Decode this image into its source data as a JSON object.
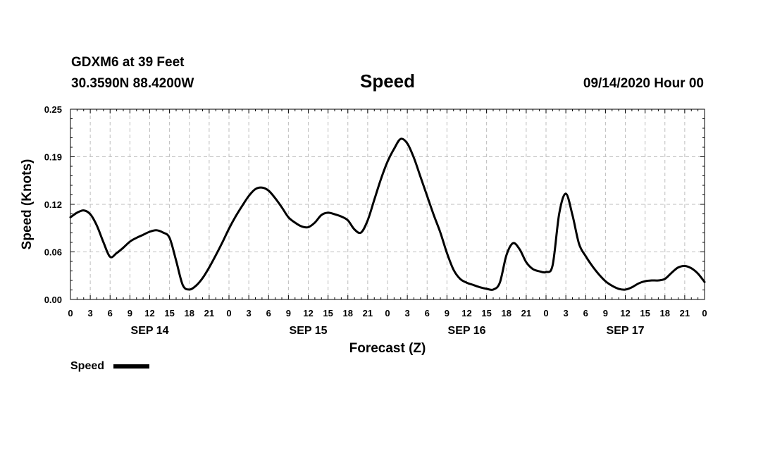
{
  "header": {
    "station": "GDXM6 at 39 Feet",
    "coords": "30.3590N 88.4200W",
    "datetime": "09/14/2020 Hour 00"
  },
  "chart_data": {
    "type": "line",
    "title": "Speed",
    "xlabel": "Forecast (Z)",
    "ylabel": "Speed (Knots)",
    "ylim": [
      0,
      0.25
    ],
    "yticks": [
      "0.00",
      "0.06",
      "0.12",
      "0.19",
      "0.25"
    ],
    "xlim": [
      0,
      96
    ],
    "x_tick_labels": [
      "0",
      "3",
      "6",
      "9",
      "12",
      "15",
      "18",
      "21",
      "0",
      "3",
      "6",
      "9",
      "12",
      "15",
      "18",
      "21",
      "0",
      "3",
      "6",
      "9",
      "12",
      "15",
      "18",
      "21",
      "0",
      "3",
      "6",
      "9",
      "12",
      "15",
      "18",
      "21",
      "0"
    ],
    "day_labels": [
      "SEP 14",
      "SEP 15",
      "SEP 16",
      "SEP 17"
    ],
    "grid": true,
    "legend": "bottom-left",
    "series": [
      {
        "name": "Speed",
        "color": "#000000",
        "x": [
          0,
          1,
          2,
          3,
          4,
          5,
          6,
          7,
          8,
          9,
          10,
          11,
          12,
          13,
          14,
          15,
          16,
          17,
          18,
          19,
          20,
          21,
          22,
          23,
          24,
          25,
          26,
          27,
          28,
          29,
          30,
          31,
          32,
          33,
          34,
          35,
          36,
          37,
          38,
          39,
          40,
          41,
          42,
          43,
          44,
          45,
          46,
          47,
          48,
          49,
          50,
          51,
          52,
          53,
          54,
          55,
          56,
          57,
          58,
          59,
          60,
          61,
          62,
          63,
          64,
          65,
          66,
          67,
          68,
          69,
          70,
          71,
          72,
          73,
          74,
          75,
          76,
          77,
          78,
          79,
          80,
          81,
          82,
          83,
          84,
          85,
          86,
          87,
          88,
          89,
          90,
          91,
          92,
          93,
          94,
          95,
          96
        ],
        "values": [
          0.108,
          0.114,
          0.117,
          0.112,
          0.097,
          0.075,
          0.056,
          0.061,
          0.068,
          0.076,
          0.081,
          0.085,
          0.089,
          0.091,
          0.088,
          0.081,
          0.051,
          0.019,
          0.013,
          0.018,
          0.028,
          0.042,
          0.058,
          0.075,
          0.093,
          0.109,
          0.123,
          0.136,
          0.145,
          0.147,
          0.143,
          0.133,
          0.121,
          0.108,
          0.101,
          0.096,
          0.095,
          0.101,
          0.111,
          0.114,
          0.112,
          0.109,
          0.104,
          0.092,
          0.088,
          0.104,
          0.131,
          0.158,
          0.181,
          0.198,
          0.211,
          0.205,
          0.186,
          0.161,
          0.136,
          0.111,
          0.088,
          0.061,
          0.039,
          0.027,
          0.022,
          0.019,
          0.016,
          0.014,
          0.013,
          0.022,
          0.058,
          0.074,
          0.066,
          0.049,
          0.04,
          0.037,
          0.036,
          0.045,
          0.113,
          0.139,
          0.111,
          0.073,
          0.057,
          0.044,
          0.033,
          0.024,
          0.018,
          0.014,
          0.013,
          0.016,
          0.021,
          0.024,
          0.025,
          0.025,
          0.027,
          0.035,
          0.042,
          0.044,
          0.041,
          0.034,
          0.023
        ]
      }
    ]
  }
}
